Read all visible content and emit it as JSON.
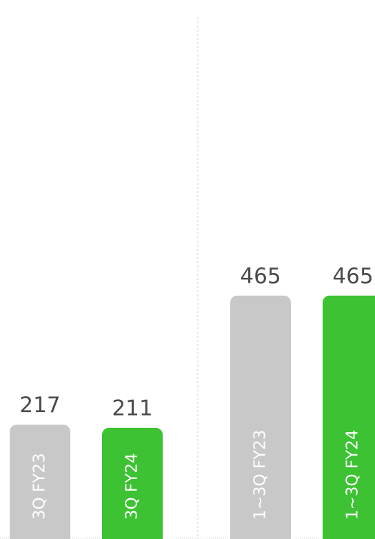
{
  "chart_data": {
    "type": "bar",
    "categories": [
      "3Q FY23",
      "3Q FY24",
      "1~3Q FY23",
      "1~3Q FY24"
    ],
    "values": [
      217,
      211,
      465,
      465
    ],
    "colors": [
      "#c8c8c8",
      "#3cc232",
      "#c8c8c8",
      "#3cc232"
    ],
    "ylim": [
      0,
      1000
    ]
  }
}
